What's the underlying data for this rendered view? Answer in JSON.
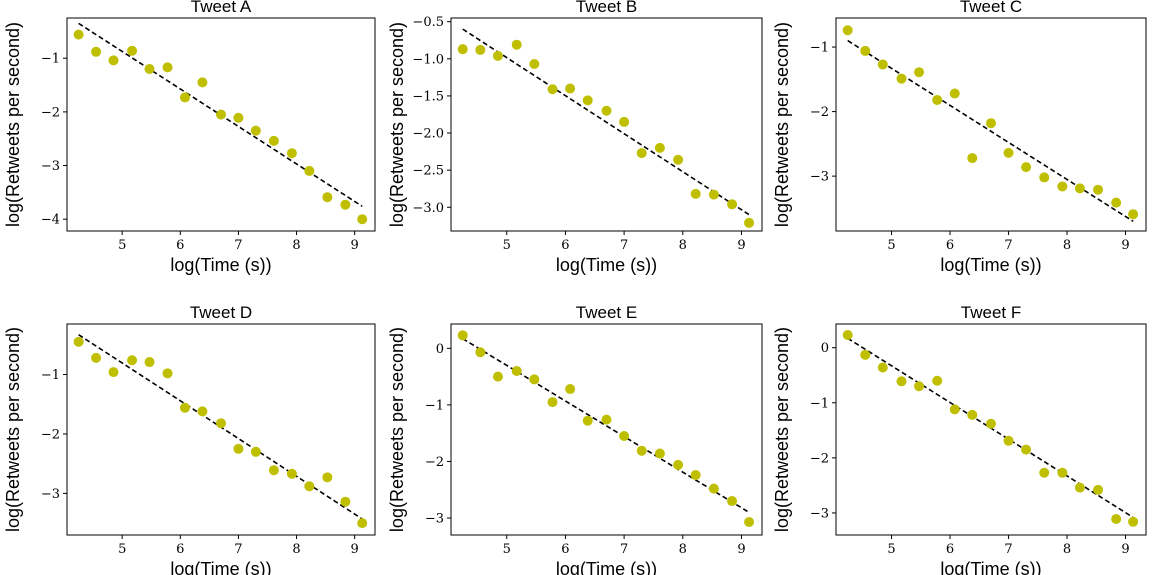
{
  "colors": {
    "points": "#bfbf00",
    "fit_line": "#000000",
    "axes": "#000000"
  },
  "chart_data": [
    {
      "type": "scatter",
      "title": "Tweet A",
      "xlabel": "log(Time (s))",
      "ylabel": "log(Retweets per second)",
      "xlim": [
        4.05,
        9.35
      ],
      "ylim": [
        -4.22,
        -0.25
      ],
      "xticks": [
        {
          "v": 5,
          "label": "5"
        },
        {
          "v": 6,
          "label": "6"
        },
        {
          "v": 7,
          "label": "7"
        },
        {
          "v": 8,
          "label": "8"
        },
        {
          "v": 9,
          "label": "9"
        }
      ],
      "yticks": [
        {
          "v": -1,
          "label": "−1"
        },
        {
          "v": -2,
          "label": "−2"
        },
        {
          "v": -3,
          "label": "−3"
        },
        {
          "v": -4,
          "label": "−4"
        }
      ],
      "points": [
        [
          4.25,
          -0.56
        ],
        [
          4.55,
          -0.88
        ],
        [
          4.85,
          -1.04
        ],
        [
          5.17,
          -0.86
        ],
        [
          5.47,
          -1.2
        ],
        [
          5.78,
          -1.17
        ],
        [
          6.08,
          -1.73
        ],
        [
          6.38,
          -1.45
        ],
        [
          6.7,
          -2.05
        ],
        [
          7.0,
          -2.11
        ],
        [
          7.3,
          -2.35
        ],
        [
          7.61,
          -2.54
        ],
        [
          7.92,
          -2.77
        ],
        [
          8.22,
          -3.1
        ],
        [
          8.53,
          -3.59
        ],
        [
          8.84,
          -3.73
        ],
        [
          9.13,
          -4.0
        ]
      ],
      "fit_line": [
        [
          4.25,
          -0.35
        ],
        [
          9.13,
          -3.76
        ]
      ]
    },
    {
      "type": "scatter",
      "title": "Tweet B",
      "xlabel": "log(Time (s))",
      "ylabel": "log(Retweets per second)",
      "xlim": [
        4.05,
        9.35
      ],
      "ylim": [
        -3.32,
        -0.45
      ],
      "xticks": [
        {
          "v": 5,
          "label": "5"
        },
        {
          "v": 6,
          "label": "6"
        },
        {
          "v": 7,
          "label": "7"
        },
        {
          "v": 8,
          "label": "8"
        },
        {
          "v": 9,
          "label": "9"
        }
      ],
      "yticks": [
        {
          "v": -0.5,
          "label": "−0.5"
        },
        {
          "v": -1.0,
          "label": "−1.0"
        },
        {
          "v": -1.5,
          "label": "−1.5"
        },
        {
          "v": -2.0,
          "label": "−2.0"
        },
        {
          "v": -2.5,
          "label": "−2.5"
        },
        {
          "v": -3.0,
          "label": "−3.0"
        }
      ],
      "points": [
        [
          4.25,
          -0.87
        ],
        [
          4.55,
          -0.88
        ],
        [
          4.85,
          -0.96
        ],
        [
          5.17,
          -0.81
        ],
        [
          5.47,
          -1.07
        ],
        [
          5.78,
          -1.41
        ],
        [
          6.08,
          -1.4
        ],
        [
          6.38,
          -1.56
        ],
        [
          6.7,
          -1.7
        ],
        [
          7.0,
          -1.85
        ],
        [
          7.3,
          -2.27
        ],
        [
          7.61,
          -2.2
        ],
        [
          7.92,
          -2.36
        ],
        [
          8.22,
          -2.82
        ],
        [
          8.53,
          -2.83
        ],
        [
          8.84,
          -2.96
        ],
        [
          9.13,
          -3.21
        ]
      ],
      "fit_line": [
        [
          4.25,
          -0.6
        ],
        [
          9.13,
          -3.1
        ]
      ]
    },
    {
      "type": "scatter",
      "title": "Tweet C",
      "xlabel": "log(Time (s))",
      "ylabel": "log(Retweets per second)",
      "xlim": [
        4.05,
        9.35
      ],
      "ylim": [
        -3.85,
        -0.55
      ],
      "xticks": [
        {
          "v": 5,
          "label": "5"
        },
        {
          "v": 6,
          "label": "6"
        },
        {
          "v": 7,
          "label": "7"
        },
        {
          "v": 8,
          "label": "8"
        },
        {
          "v": 9,
          "label": "9"
        }
      ],
      "yticks": [
        {
          "v": -1,
          "label": "−1"
        },
        {
          "v": -2,
          "label": "−2"
        },
        {
          "v": -3,
          "label": "−3"
        }
      ],
      "points": [
        [
          4.25,
          -0.74
        ],
        [
          4.55,
          -1.06
        ],
        [
          4.85,
          -1.27
        ],
        [
          5.17,
          -1.49
        ],
        [
          5.47,
          -1.39
        ],
        [
          5.78,
          -1.82
        ],
        [
          6.08,
          -1.72
        ],
        [
          6.38,
          -2.72
        ],
        [
          6.7,
          -2.18
        ],
        [
          7.0,
          -2.64
        ],
        [
          7.3,
          -2.86
        ],
        [
          7.61,
          -3.02
        ],
        [
          7.92,
          -3.16
        ],
        [
          8.22,
          -3.19
        ],
        [
          8.53,
          -3.21
        ],
        [
          8.84,
          -3.41
        ],
        [
          9.13,
          -3.59
        ]
      ],
      "fit_line": [
        [
          4.25,
          -0.9
        ],
        [
          9.13,
          -3.7
        ]
      ]
    },
    {
      "type": "scatter",
      "title": "Tweet D",
      "xlabel": "log(Time (s))",
      "ylabel": "log(Retweets per second)",
      "xlim": [
        4.05,
        9.35
      ],
      "ylim": [
        -3.7,
        -0.15
      ],
      "xticks": [
        {
          "v": 5,
          "label": "5"
        },
        {
          "v": 6,
          "label": "6"
        },
        {
          "v": 7,
          "label": "7"
        },
        {
          "v": 8,
          "label": "8"
        },
        {
          "v": 9,
          "label": "9"
        }
      ],
      "yticks": [
        {
          "v": -1,
          "label": "−1"
        },
        {
          "v": -2,
          "label": "−2"
        },
        {
          "v": -3,
          "label": "−3"
        }
      ],
      "points": [
        [
          4.25,
          -0.45
        ],
        [
          4.55,
          -0.72
        ],
        [
          4.85,
          -0.96
        ],
        [
          5.17,
          -0.76
        ],
        [
          5.47,
          -0.79
        ],
        [
          5.78,
          -0.98
        ],
        [
          6.08,
          -1.56
        ],
        [
          6.38,
          -1.62
        ],
        [
          6.7,
          -1.82
        ],
        [
          7.0,
          -2.25
        ],
        [
          7.3,
          -2.3
        ],
        [
          7.61,
          -2.61
        ],
        [
          7.92,
          -2.67
        ],
        [
          8.22,
          -2.88
        ],
        [
          8.53,
          -2.73
        ],
        [
          8.84,
          -3.14
        ],
        [
          9.13,
          -3.5
        ]
      ],
      "fit_line": [
        [
          4.25,
          -0.33
        ],
        [
          9.13,
          -3.43
        ]
      ]
    },
    {
      "type": "scatter",
      "title": "Tweet E",
      "xlabel": "log(Time (s))",
      "ylabel": "log(Retweets per second)",
      "xlim": [
        4.05,
        9.35
      ],
      "ylim": [
        -3.3,
        0.43
      ],
      "xticks": [
        {
          "v": 5,
          "label": "5"
        },
        {
          "v": 6,
          "label": "6"
        },
        {
          "v": 7,
          "label": "7"
        },
        {
          "v": 8,
          "label": "8"
        },
        {
          "v": 9,
          "label": "9"
        }
      ],
      "yticks": [
        {
          "v": 0,
          "label": "0"
        },
        {
          "v": -1,
          "label": "−1"
        },
        {
          "v": -2,
          "label": "−2"
        },
        {
          "v": -3,
          "label": "−3"
        }
      ],
      "points": [
        [
          4.25,
          0.23
        ],
        [
          4.55,
          -0.07
        ],
        [
          4.85,
          -0.5
        ],
        [
          5.17,
          -0.4
        ],
        [
          5.47,
          -0.55
        ],
        [
          5.78,
          -0.95
        ],
        [
          6.08,
          -0.72
        ],
        [
          6.38,
          -1.28
        ],
        [
          6.7,
          -1.26
        ],
        [
          7.0,
          -1.55
        ],
        [
          7.3,
          -1.81
        ],
        [
          7.61,
          -1.86
        ],
        [
          7.92,
          -2.06
        ],
        [
          8.22,
          -2.24
        ],
        [
          8.53,
          -2.48
        ],
        [
          8.84,
          -2.7
        ],
        [
          9.13,
          -3.07
        ]
      ],
      "fit_line": [
        [
          4.25,
          0.17
        ],
        [
          9.13,
          -2.9
        ]
      ]
    },
    {
      "type": "scatter",
      "title": "Tweet F",
      "xlabel": "log(Time (s))",
      "ylabel": "log(Retweets per second)",
      "xlim": [
        4.05,
        9.35
      ],
      "ylim": [
        -3.4,
        0.43
      ],
      "xticks": [
        {
          "v": 5,
          "label": "5"
        },
        {
          "v": 6,
          "label": "6"
        },
        {
          "v": 7,
          "label": "7"
        },
        {
          "v": 8,
          "label": "8"
        },
        {
          "v": 9,
          "label": "9"
        }
      ],
      "yticks": [
        {
          "v": 0,
          "label": "0"
        },
        {
          "v": -1,
          "label": "−1"
        },
        {
          "v": -2,
          "label": "−2"
        },
        {
          "v": -3,
          "label": "−3"
        }
      ],
      "points": [
        [
          4.25,
          0.23
        ],
        [
          4.55,
          -0.13
        ],
        [
          4.85,
          -0.36
        ],
        [
          5.17,
          -0.61
        ],
        [
          5.47,
          -0.7
        ],
        [
          5.78,
          -0.6
        ],
        [
          6.08,
          -1.12
        ],
        [
          6.38,
          -1.22
        ],
        [
          6.7,
          -1.38
        ],
        [
          7.0,
          -1.69
        ],
        [
          7.3,
          -1.85
        ],
        [
          7.61,
          -2.27
        ],
        [
          7.92,
          -2.27
        ],
        [
          8.22,
          -2.54
        ],
        [
          8.53,
          -2.58
        ],
        [
          8.84,
          -3.11
        ],
        [
          9.13,
          -3.16
        ]
      ],
      "fit_line": [
        [
          4.25,
          0.17
        ],
        [
          9.13,
          -3.08
        ]
      ]
    }
  ]
}
